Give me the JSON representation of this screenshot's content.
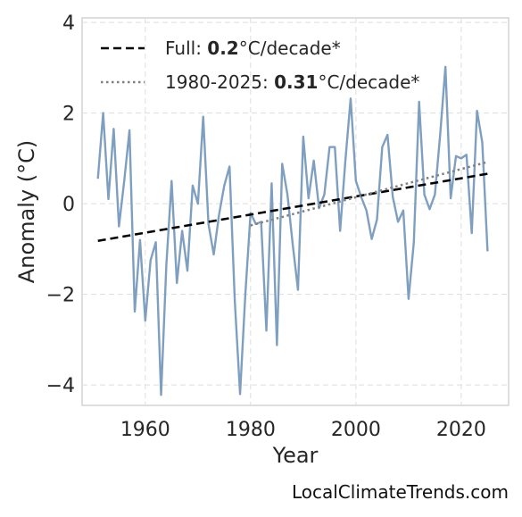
{
  "chart_data": {
    "type": "line",
    "xlabel": "Year",
    "ylabel": "Anomaly (°C)",
    "xlim": [
      1948,
      2029
    ],
    "ylim": [
      -4.45,
      4.1
    ],
    "xticks": [
      1960,
      1980,
      2000,
      2020
    ],
    "yticks": [
      -4,
      -2,
      0,
      2,
      4
    ],
    "grid": true,
    "legend_position": "top-left",
    "series": [
      {
        "style": "solid",
        "color": "#7f9fc0",
        "x": [
          1951,
          1952,
          1953,
          1954,
          1955,
          1956,
          1957,
          1958,
          1959,
          1960,
          1961,
          1962,
          1963,
          1964,
          1965,
          1966,
          1967,
          1968,
          1969,
          1970,
          1971,
          1972,
          1973,
          1974,
          1975,
          1976,
          1977,
          1978,
          1979,
          1980,
          1981,
          1982,
          1983,
          1984,
          1985,
          1986,
          1987,
          1988,
          1989,
          1990,
          1991,
          1992,
          1993,
          1994,
          1995,
          1996,
          1997,
          1998,
          1999,
          2000,
          2001,
          2002,
          2003,
          2004,
          2005,
          2006,
          2007,
          2008,
          2009,
          2010,
          2011,
          2012,
          2013,
          2014,
          2015,
          2016,
          2017,
          2018,
          2019,
          2020,
          2021,
          2022,
          2023,
          2024,
          2025
        ],
        "y": [
          0.55,
          2.0,
          0.1,
          1.65,
          -0.5,
          0.5,
          1.62,
          -2.38,
          -0.8,
          -2.58,
          -1.25,
          -0.85,
          -4.22,
          -1.35,
          0.5,
          -1.75,
          -0.6,
          -1.48,
          0.4,
          0.0,
          1.92,
          -0.45,
          -1.12,
          -0.25,
          0.4,
          0.82,
          -2.15,
          -4.2,
          -2.0,
          -0.2,
          -0.45,
          -0.4,
          -2.8,
          0.45,
          -3.12,
          0.88,
          0.2,
          -0.9,
          -1.9,
          1.48,
          0.12,
          0.95,
          -0.1,
          0.2,
          1.25,
          1.25,
          -0.6,
          0.95,
          2.32,
          0.5,
          0.15,
          -0.15,
          -0.78,
          -0.35,
          1.25,
          1.52,
          0.15,
          -0.4,
          -0.15,
          -2.1,
          -0.85,
          2.25,
          0.2,
          -0.12,
          0.2,
          1.52,
          3.02,
          0.12,
          1.05,
          1.0,
          1.08,
          -0.65,
          2.05,
          1.35,
          -1.05
        ]
      },
      {
        "style": "dashed",
        "color": "#000000",
        "x": [
          1951,
          2025
        ],
        "y": [
          -0.82,
          0.66
        ]
      },
      {
        "style": "dotted",
        "color": "#808080",
        "x": [
          1980,
          2025
        ],
        "y": [
          -0.48,
          0.92
        ]
      }
    ]
  },
  "legend": [
    {
      "prefix": "Full: ",
      "bold": "0.2",
      "suffix": "°C/decade*"
    },
    {
      "prefix": "1980-2025: ",
      "bold": "0.31",
      "suffix": "°C/decade*"
    }
  ],
  "footer": "LocalClimateTrends.com"
}
